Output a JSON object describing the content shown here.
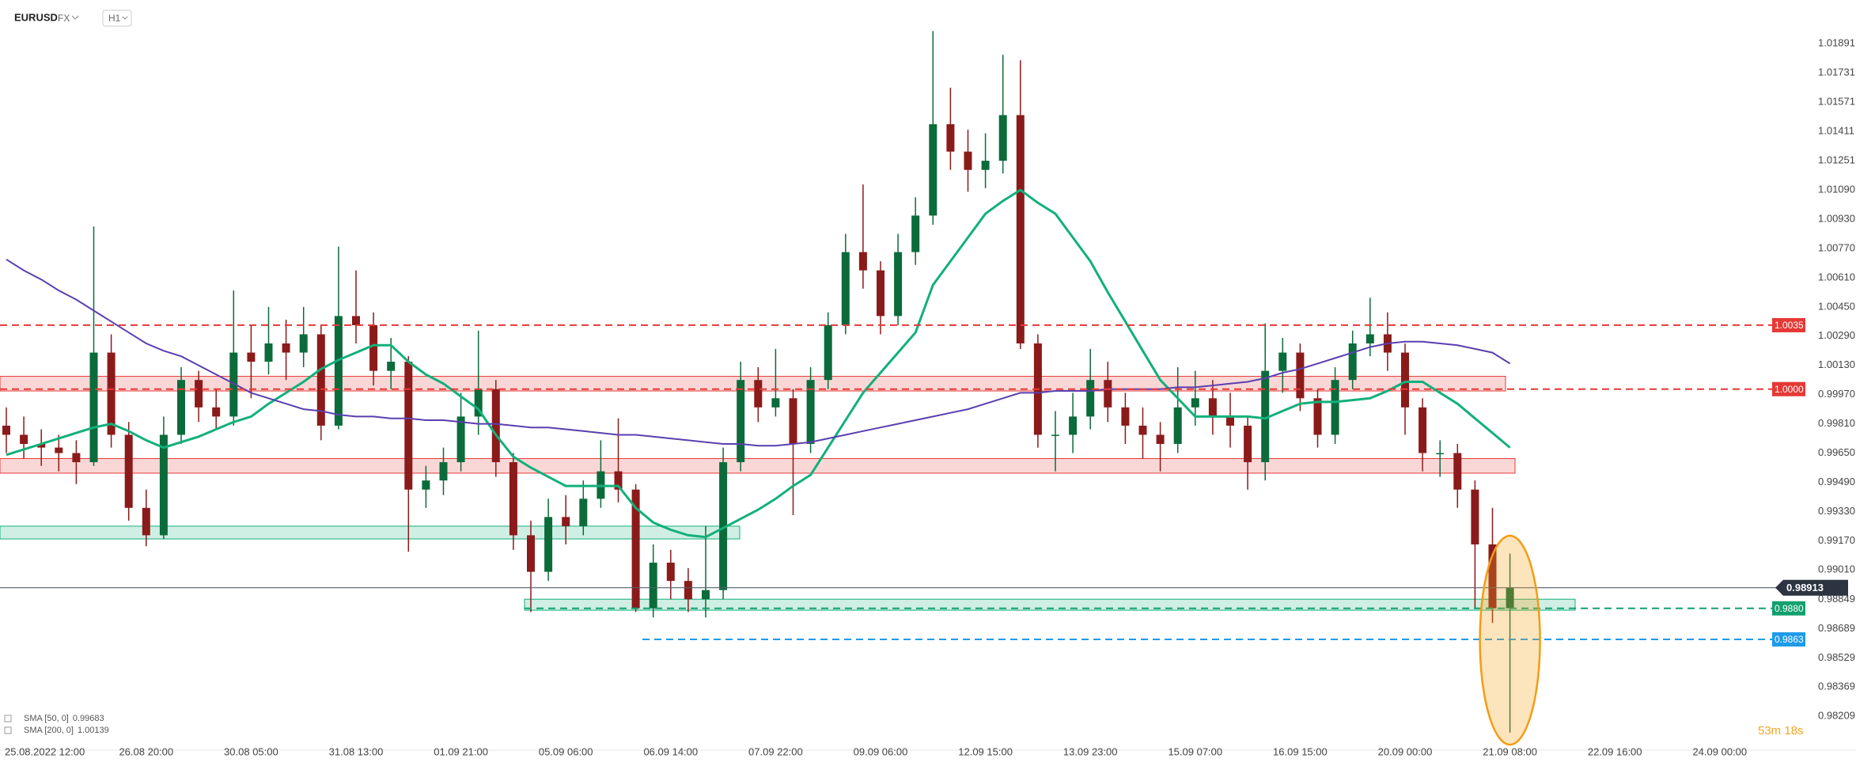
{
  "header": {
    "symbol": "EURUSD",
    "market": "FX",
    "interval": "H1"
  },
  "countdown": "53m 18s",
  "chart_data": {
    "type": "candlestick",
    "categories": [
      null,
      null,
      "25.08.2022 12:00",
      null,
      null,
      null,
      null,
      null,
      "26.08 20:00",
      null,
      null,
      null,
      null,
      null,
      "30.08 05:00",
      null,
      null,
      null,
      null,
      null,
      "31.08 13:00",
      null,
      null,
      null,
      null,
      null,
      "01.09 21:00",
      null,
      null,
      null,
      null,
      null,
      "05.09 06:00",
      null,
      null,
      null,
      null,
      null,
      "06.09 14:00",
      null,
      null,
      null,
      null,
      null,
      "07.09 22:00",
      null,
      null,
      null,
      null,
      null,
      "09.09 06:00",
      null,
      null,
      null,
      null,
      null,
      "12.09 15:00",
      null,
      null,
      null,
      null,
      null,
      "13.09 23:00",
      null,
      null,
      null,
      null,
      null,
      "15.09 07:00",
      null,
      null,
      null,
      null,
      null,
      "16.09 15:00",
      null,
      null,
      null,
      null,
      null,
      "20.09 00:00",
      null,
      null,
      null,
      null,
      null,
      "21.09 08:00",
      null,
      null,
      null,
      null,
      null,
      "22.09 16:00",
      null,
      null,
      null,
      null,
      null,
      "24.09 00:00"
    ],
    "ohlc": [
      [
        0.998,
        0.999,
        0.9965,
        0.9975
      ],
      [
        0.9975,
        0.9985,
        0.9962,
        0.997
      ],
      [
        0.997,
        0.9978,
        0.9958,
        0.9968
      ],
      [
        0.9968,
        0.9975,
        0.9955,
        0.9965
      ],
      [
        0.9965,
        0.9972,
        0.9948,
        0.996
      ],
      [
        0.996,
        1.0089,
        0.9958,
        1.002
      ],
      [
        1.002,
        1.003,
        0.9968,
        0.9975
      ],
      [
        0.9975,
        0.9982,
        0.9928,
        0.9935
      ],
      [
        0.9935,
        0.9945,
        0.9914,
        0.992
      ],
      [
        0.992,
        0.9985,
        0.9918,
        0.9975
      ],
      [
        0.9975,
        1.0012,
        0.997,
        1.0005
      ],
      [
        1.0005,
        1.001,
        0.9982,
        0.999
      ],
      [
        0.999,
        1.0,
        0.9978,
        0.9985
      ],
      [
        0.9985,
        1.0054,
        0.998,
        1.002
      ],
      [
        1.002,
        1.0035,
        0.9995,
        1.0015
      ],
      [
        1.0015,
        1.0045,
        1.0008,
        1.0025
      ],
      [
        1.0025,
        1.0038,
        1.0005,
        1.002
      ],
      [
        1.002,
        1.0045,
        1.0012,
        1.003
      ],
      [
        1.003,
        1.0035,
        0.9972,
        0.998
      ],
      [
        0.998,
        1.0078,
        0.9978,
        1.004
      ],
      [
        1.004,
        1.0065,
        1.0025,
        1.0035
      ],
      [
        1.0035,
        1.0042,
        1.0002,
        1.001
      ],
      [
        1.001,
        1.0028,
        1.0,
        1.0015
      ],
      [
        1.0015,
        1.0018,
        0.9911,
        0.9945
      ],
      [
        0.9945,
        0.9958,
        0.9935,
        0.995
      ],
      [
        0.995,
        0.9968,
        0.9942,
        0.996
      ],
      [
        0.996,
        0.9998,
        0.9955,
        0.9985
      ],
      [
        0.9985,
        1.0032,
        0.9975,
        1.0
      ],
      [
        1.0,
        1.0005,
        0.9952,
        0.996
      ],
      [
        0.996,
        0.9965,
        0.9912,
        0.992
      ],
      [
        0.992,
        0.9928,
        0.9878,
        0.99
      ],
      [
        0.99,
        0.994,
        0.9895,
        0.993
      ],
      [
        0.993,
        0.9942,
        0.9915,
        0.9925
      ],
      [
        0.9925,
        0.995,
        0.992,
        0.994
      ],
      [
        0.994,
        0.9972,
        0.9935,
        0.9955
      ],
      [
        0.9955,
        0.9984,
        0.9938,
        0.9945
      ],
      [
        0.9945,
        0.9948,
        0.9878,
        0.988
      ],
      [
        0.988,
        0.9915,
        0.9875,
        0.9905
      ],
      [
        0.9905,
        0.9912,
        0.9885,
        0.9895
      ],
      [
        0.9895,
        0.9902,
        0.9878,
        0.9885
      ],
      [
        0.9885,
        0.9925,
        0.9875,
        0.989
      ],
      [
        0.989,
        0.9968,
        0.9885,
        0.996
      ],
      [
        0.996,
        1.0015,
        0.9955,
        1.0005
      ],
      [
        1.0005,
        1.0012,
        0.9982,
        0.999
      ],
      [
        0.999,
        1.0022,
        0.9985,
        0.9995
      ],
      [
        0.9995,
        1.0,
        0.9931,
        0.997
      ],
      [
        0.997,
        1.0012,
        0.9965,
        1.0005
      ],
      [
        1.0005,
        1.0042,
        1.0,
        1.0035
      ],
      [
        1.0035,
        1.0085,
        1.003,
        1.0075
      ],
      [
        1.0075,
        1.0112,
        1.0055,
        1.0065
      ],
      [
        1.0065,
        1.007,
        1.003,
        1.004
      ],
      [
        1.004,
        1.0085,
        1.0035,
        1.0075
      ],
      [
        1.0075,
        1.0105,
        1.0068,
        1.0095
      ],
      [
        1.0095,
        1.0196,
        1.009,
        1.0145
      ],
      [
        1.0145,
        1.0165,
        1.012,
        1.013
      ],
      [
        1.013,
        1.0142,
        1.0108,
        1.012
      ],
      [
        1.012,
        1.014,
        1.011,
        1.0125
      ],
      [
        1.0125,
        1.0183,
        1.0118,
        1.015
      ],
      [
        1.015,
        1.018,
        1.0022,
        1.0025
      ],
      [
        1.0025,
        1.003,
        0.9968,
        0.9975
      ],
      [
        0.9975,
        0.9988,
        0.9955,
        0.9975
      ],
      [
        0.9975,
        0.9998,
        0.9965,
        0.9985
      ],
      [
        0.9985,
        1.0022,
        0.9978,
        1.0005
      ],
      [
        1.0005,
        1.0015,
        0.9982,
        0.999
      ],
      [
        0.999,
        0.9998,
        0.997,
        0.998
      ],
      [
        0.998,
        0.999,
        0.9962,
        0.9975
      ],
      [
        0.9975,
        0.9982,
        0.9955,
        0.997
      ],
      [
        0.997,
        1.0012,
        0.9965,
        0.999
      ],
      [
        0.999,
        1.001,
        0.998,
        0.9995
      ],
      [
        0.9995,
        1.0005,
        0.9975,
        0.9985
      ],
      [
        0.9985,
        0.9998,
        0.9968,
        0.998
      ],
      [
        0.998,
        0.9985,
        0.9945,
        0.996
      ],
      [
        0.996,
        1.0036,
        0.995,
        1.001
      ],
      [
        1.001,
        1.0028,
        0.9998,
        1.002
      ],
      [
        1.002,
        1.0025,
        0.9988,
        0.9995
      ],
      [
        0.9995,
        1.0,
        0.9968,
        0.9975
      ],
      [
        0.9975,
        1.0012,
        0.997,
        1.0005
      ],
      [
        1.0005,
        1.0032,
        1.0,
        1.0025
      ],
      [
        1.0025,
        1.005,
        1.0018,
        1.003
      ],
      [
        1.003,
        1.0042,
        1.001,
        1.002
      ],
      [
        1.002,
        1.0025,
        0.9975,
        0.999
      ],
      [
        0.999,
        0.9995,
        0.9955,
        0.9965
      ],
      [
        0.9965,
        0.9972,
        0.9952,
        0.9965
      ],
      [
        0.9965,
        0.997,
        0.9935,
        0.9945
      ],
      [
        0.9945,
        0.995,
        0.988,
        0.9915
      ],
      [
        0.9915,
        0.9935,
        0.9872,
        0.988
      ],
      [
        0.988,
        0.991,
        0.9812,
        0.98913
      ],
      null,
      null,
      null,
      null,
      null,
      null,
      null,
      null,
      null,
      null,
      null,
      null
    ],
    "up_color": "#0b6b3a",
    "down_color": "#8b1a1a",
    "series": [
      {
        "name": "SMA [50, 0]",
        "last": 0.99683,
        "color": "#12b07a",
        "values": [
          0.9964,
          0.9967,
          0.997,
          0.9973,
          0.9976,
          0.9979,
          0.9981,
          0.9977,
          0.9972,
          0.9968,
          0.9971,
          0.9974,
          0.9978,
          0.9982,
          0.9985,
          0.9992,
          0.9998,
          1.0004,
          1.0011,
          1.0016,
          1.002,
          1.0024,
          1.0024,
          1.0015,
          1.0008,
          1.0003,
          0.9996,
          0.9989,
          0.9975,
          0.9963,
          0.9957,
          0.9952,
          0.9947,
          0.9947,
          0.9947,
          0.9947,
          0.9935,
          0.9927,
          0.9923,
          0.992,
          0.9919,
          0.9924,
          0.9929,
          0.9934,
          0.994,
          0.9947,
          0.9953,
          0.9968,
          0.9983,
          0.9998,
          1.0009,
          1.002,
          1.0031,
          1.0057,
          1.007,
          1.0083,
          1.0096,
          1.0103,
          1.0109,
          1.0102,
          1.0096,
          1.0083,
          1.007,
          1.0053,
          1.0037,
          1.0021,
          1.0005,
          0.9995,
          0.9985,
          0.9985,
          0.9985,
          0.9985,
          0.9984,
          0.9988,
          0.9992,
          0.9993,
          0.9993,
          0.9994,
          0.9995,
          0.9999,
          1.0004,
          1.0004,
          0.9998,
          0.9992,
          0.9984,
          0.9976,
          0.9968,
          null,
          null,
          null,
          null,
          null,
          null,
          null,
          null,
          null,
          null,
          null,
          null
        ]
      },
      {
        "name": "SMA [200, 0]",
        "last": 1.00139,
        "color": "#5b3fb0",
        "values": [
          1.0071,
          1.0065,
          1.006,
          1.0054,
          1.0049,
          1.0043,
          1.0037,
          1.0031,
          1.0025,
          1.0021,
          1.0018,
          1.0013,
          1.0008,
          1.0003,
          0.9998,
          0.9995,
          0.9992,
          0.9989,
          0.9988,
          0.9986,
          0.9985,
          0.9985,
          0.9984,
          0.9984,
          0.9983,
          0.9983,
          0.9982,
          0.9981,
          0.9981,
          0.998,
          0.9979,
          0.9979,
          0.9978,
          0.9977,
          0.9976,
          0.9975,
          0.9975,
          0.9974,
          0.9973,
          0.9972,
          0.9971,
          0.997,
          0.997,
          0.9969,
          0.9969,
          0.997,
          0.9971,
          0.9973,
          0.9975,
          0.9977,
          0.9979,
          0.9981,
          0.9983,
          0.9985,
          0.9987,
          0.9989,
          0.9992,
          0.9995,
          0.9998,
          0.9998,
          0.9999,
          0.9999,
          0.9999,
          1.0,
          1.0,
          1.0,
          1.0,
          1.0001,
          1.0001,
          1.0002,
          1.0003,
          1.0004,
          1.0006,
          1.0009,
          1.0011,
          1.0014,
          1.0017,
          1.002,
          1.0023,
          1.0025,
          1.0026,
          1.0026,
          1.0025,
          1.0024,
          1.0022,
          1.002,
          1.0014,
          null,
          null,
          null,
          null,
          null,
          null,
          null,
          null,
          null,
          null,
          null,
          null
        ]
      }
    ],
    "zones": [
      {
        "low": 0.9999,
        "high": 1.0007,
        "color": "#e53935"
      },
      {
        "low": 0.9954,
        "high": 0.9962,
        "color": "#e53935"
      },
      {
        "low": 0.9918,
        "high": 0.9925,
        "color": "#12b07a"
      },
      {
        "low": 0.9879,
        "high": 0.9885,
        "color": "#12b07a"
      }
    ],
    "levels": [
      {
        "price": 1.0035,
        "color": "#e53935"
      },
      {
        "price": {
          "value": 1,
          "label": "1.0000"
        },
        "color": "#e53935"
      },
      {
        "price": {
          "value": 0.988,
          "label": "0.9880"
        },
        "color": "#12a06e"
      },
      {
        "price": 0.9863,
        "color": "#1e9be9"
      }
    ],
    "last_price": 0.98913,
    "ylim": [
      0.9808,
      1.02
    ],
    "yticks": [
      1.01891,
      1.01731,
      1.01571,
      1.01411,
      1.01251,
      {
        "value": 1.0109,
        "label": "1.01090"
      },
      {
        "value": 1.0093,
        "label": "1.00930"
      },
      {
        "value": 1.0077,
        "label": "1.00770"
      },
      {
        "value": 1.0061,
        "label": "1.00610"
      },
      {
        "value": 1.0045,
        "label": "1.00450"
      },
      {
        "value": 1.0029,
        "label": "1.00290"
      },
      {
        "value": 1.0013,
        "label": "1.00130"
      },
      {
        "value": 0.9997,
        "label": "0.99970"
      },
      {
        "value": 0.9981,
        "label": "0.99810"
      },
      {
        "value": 0.9965,
        "label": "0.99650"
      },
      {
        "value": 0.9949,
        "label": "0.99490"
      },
      {
        "value": 0.9933,
        "label": "0.99330"
      },
      {
        "value": 0.9917,
        "label": "0.99170"
      },
      {
        "value": 0.9901,
        "label": "0.99010"
      },
      0.98849,
      0.98689,
      0.98529,
      0.98369,
      0.98209
    ],
    "grid": false
  }
}
